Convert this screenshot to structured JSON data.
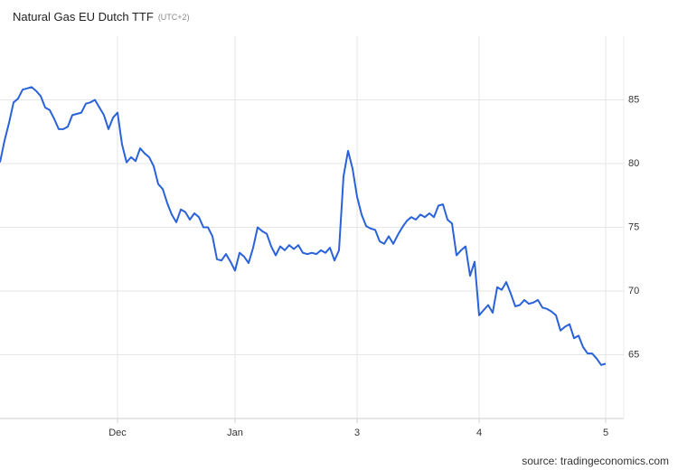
{
  "chart_data": {
    "type": "line",
    "title": "Natural Gas EU Dutch TTF",
    "subtitle": "(UTC+2)",
    "source": "source: tradingeconomics.com",
    "color": "#2962d9",
    "grid": true,
    "ylim": [
      60,
      90
    ],
    "yticks": [
      65,
      70,
      75,
      80,
      85
    ],
    "xticks": [
      {
        "value": 26,
        "label": "Dec"
      },
      {
        "value": 52,
        "label": "Jan"
      },
      {
        "value": 79,
        "label": "3"
      },
      {
        "value": 106,
        "label": "4"
      },
      {
        "value": 134,
        "label": "5"
      }
    ],
    "values": [
      80.1,
      81.8,
      83.2,
      84.8,
      85.1,
      85.8,
      85.9,
      86.0,
      85.7,
      85.3,
      84.4,
      84.2,
      83.5,
      82.7,
      82.7,
      82.9,
      83.8,
      83.9,
      84.0,
      84.7,
      84.8,
      85.0,
      84.4,
      83.8,
      82.7,
      83.6,
      84.0,
      81.5,
      80.1,
      80.5,
      80.2,
      81.2,
      80.8,
      80.5,
      79.8,
      78.4,
      78.0,
      76.9,
      76.0,
      75.4,
      76.4,
      76.2,
      75.6,
      76.1,
      75.8,
      75.0,
      75.0,
      74.3,
      72.5,
      72.4,
      72.9,
      72.3,
      71.6,
      73.0,
      72.7,
      72.2,
      73.4,
      75.0,
      74.7,
      74.5,
      73.5,
      72.8,
      73.5,
      73.2,
      73.6,
      73.3,
      73.6,
      73.0,
      72.9,
      73.0,
      72.9,
      73.2,
      73.0,
      73.4,
      72.4,
      73.2,
      79.0,
      81.0,
      79.6,
      77.4,
      76.0,
      75.1,
      74.9,
      74.8,
      73.9,
      73.7,
      74.3,
      73.7,
      74.4,
      75.0,
      75.5,
      75.8,
      75.6,
      76.0,
      75.8,
      76.1,
      75.8,
      76.7,
      76.8,
      75.6,
      75.3,
      72.8,
      73.2,
      73.5,
      71.2,
      72.3,
      68.1,
      68.5,
      68.9,
      68.3,
      70.3,
      70.1,
      70.7,
      69.8,
      68.8,
      68.9,
      69.3,
      69.0,
      69.1,
      69.3,
      68.7,
      68.6,
      68.4,
      68.1,
      66.9,
      67.2,
      67.4,
      66.3,
      66.5,
      65.6,
      65.1,
      65.1,
      64.7,
      64.2,
      64.3
    ]
  }
}
